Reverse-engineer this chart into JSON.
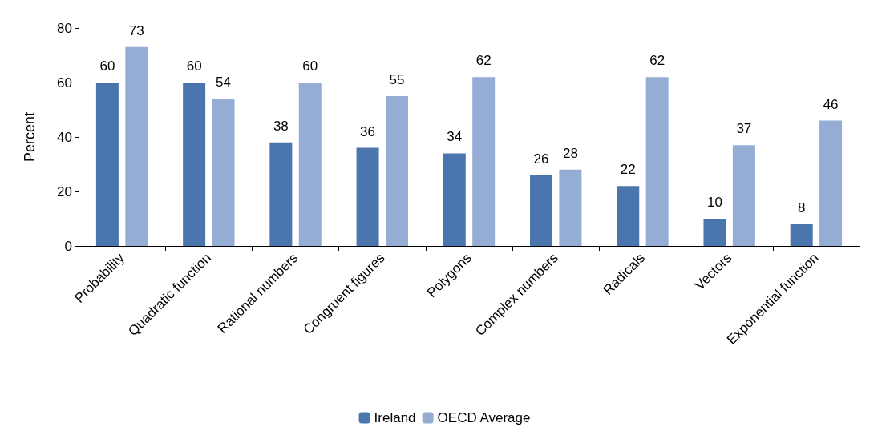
{
  "chart_data": {
    "type": "bar",
    "ylabel": "Percent",
    "categories": [
      "Probability",
      "Quadratic function",
      "Rational numbers",
      "Congruent figures",
      "Polygons",
      "Complex numbers",
      "Radicals",
      "Vectors",
      "Exponential function"
    ],
    "series": [
      {
        "name": "Ireland",
        "color": "#4a76ad",
        "values": [
          60,
          60,
          38,
          36,
          34,
          26,
          22,
          10,
          8
        ]
      },
      {
        "name": "OECD Average",
        "color": "#95acd4",
        "values": [
          73,
          54,
          60,
          55,
          62,
          28,
          62,
          37,
          46
        ]
      }
    ],
    "ylim": [
      0,
      80
    ],
    "yticks": [
      0,
      20,
      40,
      60,
      80
    ],
    "grid": false,
    "legend": "bottom",
    "data_labels": true
  }
}
